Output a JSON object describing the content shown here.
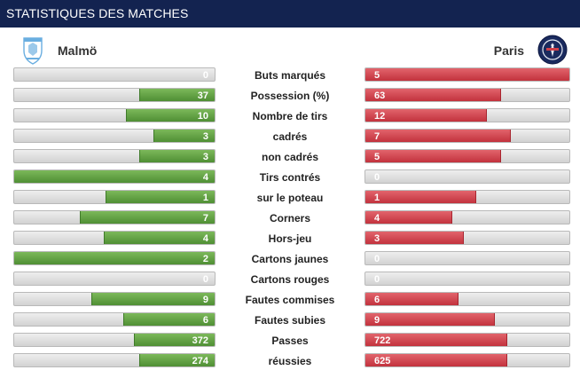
{
  "header": {
    "title": "STATISTIQUES DES MATCHES"
  },
  "teams": {
    "home": {
      "name": "Malmö",
      "logo": "malmo-crest-icon"
    },
    "away": {
      "name": "Paris",
      "logo": "psg-crest-icon"
    }
  },
  "colors": {
    "header_bg": "#132350",
    "home_fill": "#5a9a3c",
    "away_fill": "#d0404a",
    "track": "#dddddd"
  },
  "stats": [
    {
      "label": "Buts marqués",
      "home": "0",
      "away": "5",
      "home_pct": 0.0,
      "away_pct": 1.0
    },
    {
      "label": "Possession (%)",
      "home": "37",
      "away": "63",
      "home_pct": 0.37,
      "away_pct": 0.66
    },
    {
      "label": "Nombre de tirs",
      "home": "10",
      "away": "12",
      "home_pct": 0.44,
      "away_pct": 0.59
    },
    {
      "label": "cadrés",
      "home": "3",
      "away": "7",
      "home_pct": 0.3,
      "away_pct": 0.71
    },
    {
      "label": "non cadrés",
      "home": "3",
      "away": "5",
      "home_pct": 0.37,
      "away_pct": 0.66
    },
    {
      "label": "Tirs contrés",
      "home": "4",
      "away": "0",
      "home_pct": 1.0,
      "away_pct": 0.0
    },
    {
      "label": "sur le poteau",
      "home": "1",
      "away": "1",
      "home_pct": 0.54,
      "away_pct": 0.54
    },
    {
      "label": "Corners",
      "home": "7",
      "away": "4",
      "home_pct": 0.67,
      "away_pct": 0.42
    },
    {
      "label": "Hors-jeu",
      "home": "4",
      "away": "3",
      "home_pct": 0.55,
      "away_pct": 0.48
    },
    {
      "label": "Cartons jaunes",
      "home": "2",
      "away": "0",
      "home_pct": 1.0,
      "away_pct": 0.0
    },
    {
      "label": "Cartons rouges",
      "home": "0",
      "away": "0",
      "home_pct": 0.0,
      "away_pct": 0.0
    },
    {
      "label": "Fautes commises",
      "home": "9",
      "away": "6",
      "home_pct": 0.61,
      "away_pct": 0.45
    },
    {
      "label": "Fautes subies",
      "home": "6",
      "away": "9",
      "home_pct": 0.45,
      "away_pct": 0.63
    },
    {
      "label": "Passes",
      "home": "372",
      "away": "722",
      "home_pct": 0.4,
      "away_pct": 0.69
    },
    {
      "label": "réussies",
      "home": "274",
      "away": "625",
      "home_pct": 0.37,
      "away_pct": 0.69
    }
  ]
}
